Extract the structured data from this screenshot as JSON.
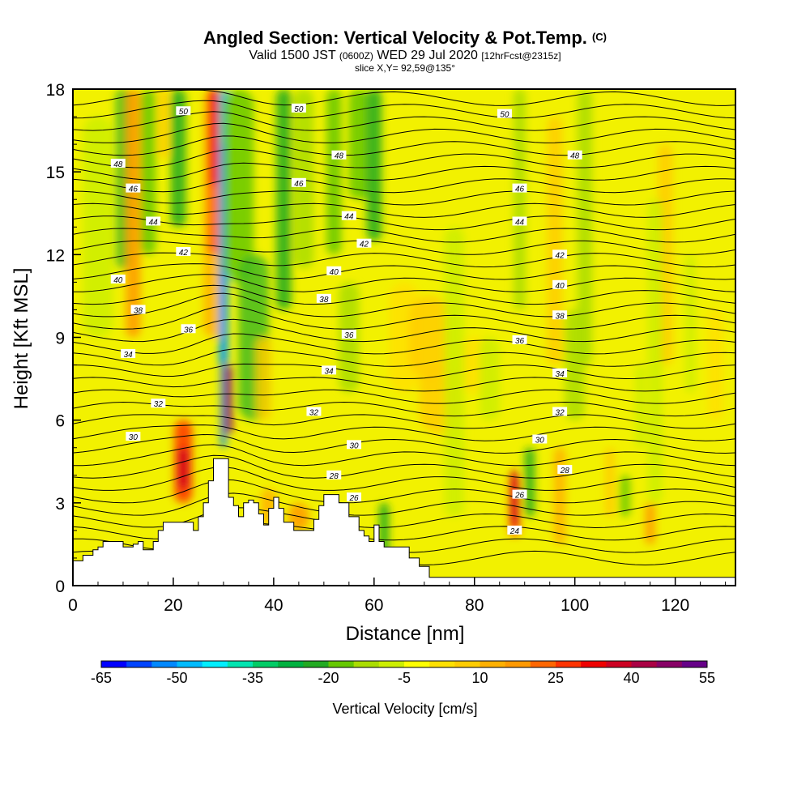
{
  "title": "Angled Section: Vertical Velocity & Pot.Temp.",
  "title_units": "(C)",
  "subtitle": {
    "valid": "Valid 1500 JST",
    "zulu": "(0600Z)",
    "date": "WED 29 Jul 2020",
    "forecast": "[12hrFcst@2315z]"
  },
  "slice_label": "slice X,Y= 92,59@135°",
  "chart_data": {
    "type": "heatmap",
    "xlabel": "Distance [nm]",
    "ylabel": "Height [Kft MSL]",
    "xlim": [
      0,
      132
    ],
    "ylim": [
      0,
      18
    ],
    "x_ticks": [
      0,
      20,
      40,
      60,
      80,
      100,
      120
    ],
    "y_ticks": [
      0,
      3,
      6,
      9,
      12,
      15,
      18
    ],
    "colorbar": {
      "label": "Vertical Velocity [cm/s]",
      "tick_labels": [
        -65,
        -50,
        -35,
        -20,
        -5,
        10,
        25,
        40,
        55
      ],
      "colors": [
        "#0000ff",
        "#0044ff",
        "#0088ff",
        "#00bbff",
        "#00eeff",
        "#00e4b0",
        "#00cc66",
        "#00b240",
        "#22aa22",
        "#66c800",
        "#aadd00",
        "#ccee00",
        "#ffff00",
        "#ffe000",
        "#ffcc00",
        "#ffb000",
        "#ff9900",
        "#ff6600",
        "#ff3300",
        "#ee0000",
        "#cc0022",
        "#aa0044",
        "#880066",
        "#660088"
      ]
    },
    "contour_field": "Potential temperature (C)",
    "contour_labels": [
      {
        "x": 22,
        "y": 17.2,
        "v": "50"
      },
      {
        "x": 45,
        "y": 17.3,
        "v": "50"
      },
      {
        "x": 86,
        "y": 17.1,
        "v": "50"
      },
      {
        "x": 9,
        "y": 15.3,
        "v": "48"
      },
      {
        "x": 53,
        "y": 15.6,
        "v": "48"
      },
      {
        "x": 100,
        "y": 15.6,
        "v": "48"
      },
      {
        "x": 12,
        "y": 14.4,
        "v": "46"
      },
      {
        "x": 45,
        "y": 14.6,
        "v": "46"
      },
      {
        "x": 89,
        "y": 14.4,
        "v": "46"
      },
      {
        "x": 16,
        "y": 13.2,
        "v": "44"
      },
      {
        "x": 55,
        "y": 13.4,
        "v": "44"
      },
      {
        "x": 89,
        "y": 13.2,
        "v": "44"
      },
      {
        "x": 22,
        "y": 12.1,
        "v": "42"
      },
      {
        "x": 58,
        "y": 12.4,
        "v": "42"
      },
      {
        "x": 97,
        "y": 12.0,
        "v": "42"
      },
      {
        "x": 9,
        "y": 11.1,
        "v": "40"
      },
      {
        "x": 52,
        "y": 11.4,
        "v": "40"
      },
      {
        "x": 97,
        "y": 10.9,
        "v": "40"
      },
      {
        "x": 13,
        "y": 10.0,
        "v": "38"
      },
      {
        "x": 50,
        "y": 10.4,
        "v": "38"
      },
      {
        "x": 97,
        "y": 9.8,
        "v": "38"
      },
      {
        "x": 23,
        "y": 9.3,
        "v": "36"
      },
      {
        "x": 55,
        "y": 9.1,
        "v": "36"
      },
      {
        "x": 89,
        "y": 8.9,
        "v": "36"
      },
      {
        "x": 11,
        "y": 8.4,
        "v": "34"
      },
      {
        "x": 51,
        "y": 7.8,
        "v": "34"
      },
      {
        "x": 97,
        "y": 7.7,
        "v": "34"
      },
      {
        "x": 17,
        "y": 6.6,
        "v": "32"
      },
      {
        "x": 48,
        "y": 6.3,
        "v": "32"
      },
      {
        "x": 97,
        "y": 6.3,
        "v": "32"
      },
      {
        "x": 12,
        "y": 5.4,
        "v": "30"
      },
      {
        "x": 56,
        "y": 5.1,
        "v": "30"
      },
      {
        "x": 93,
        "y": 5.3,
        "v": "30"
      },
      {
        "x": 52,
        "y": 4.0,
        "v": "28"
      },
      {
        "x": 98,
        "y": 4.2,
        "v": "28"
      },
      {
        "x": 56,
        "y": 3.2,
        "v": "26"
      },
      {
        "x": 89,
        "y": 3.3,
        "v": "26"
      },
      {
        "x": 88,
        "y": 2.0,
        "v": "24"
      }
    ],
    "terrain_kft": [
      [
        0,
        0.9
      ],
      [
        2,
        1.1
      ],
      [
        4,
        1.3
      ],
      [
        5,
        1.4
      ],
      [
        6,
        1.6
      ],
      [
        9,
        1.6
      ],
      [
        10,
        1.4
      ],
      [
        12,
        1.5
      ],
      [
        13,
        1.6
      ],
      [
        14,
        1.3
      ],
      [
        16,
        1.6
      ],
      [
        17,
        2.0
      ],
      [
        18,
        2.3
      ],
      [
        23,
        2.3
      ],
      [
        24,
        2.0
      ],
      [
        25,
        2.5
      ],
      [
        26,
        3.0
      ],
      [
        27,
        3.8
      ],
      [
        28,
        4.6
      ],
      [
        30,
        4.6
      ],
      [
        31,
        3.2
      ],
      [
        32,
        2.9
      ],
      [
        33,
        2.5
      ],
      [
        34,
        3.0
      ],
      [
        35,
        3.1
      ],
      [
        36,
        3.0
      ],
      [
        37,
        2.6
      ],
      [
        38,
        2.2
      ],
      [
        39,
        2.8
      ],
      [
        40,
        3.2
      ],
      [
        41,
        2.8
      ],
      [
        42,
        2.3
      ],
      [
        44,
        2.0
      ],
      [
        46,
        2.0
      ],
      [
        48,
        2.4
      ],
      [
        49,
        2.9
      ],
      [
        50,
        3.3
      ],
      [
        52,
        3.3
      ],
      [
        53,
        3.0
      ],
      [
        55,
        2.5
      ],
      [
        57,
        2.0
      ],
      [
        58,
        1.8
      ],
      [
        59,
        1.6
      ],
      [
        60,
        2.2
      ],
      [
        61,
        1.6
      ],
      [
        62,
        1.4
      ],
      [
        66,
        1.4
      ],
      [
        67,
        1.0
      ],
      [
        69,
        0.7
      ],
      [
        71,
        0.3
      ],
      [
        132,
        0.3
      ]
    ]
  }
}
